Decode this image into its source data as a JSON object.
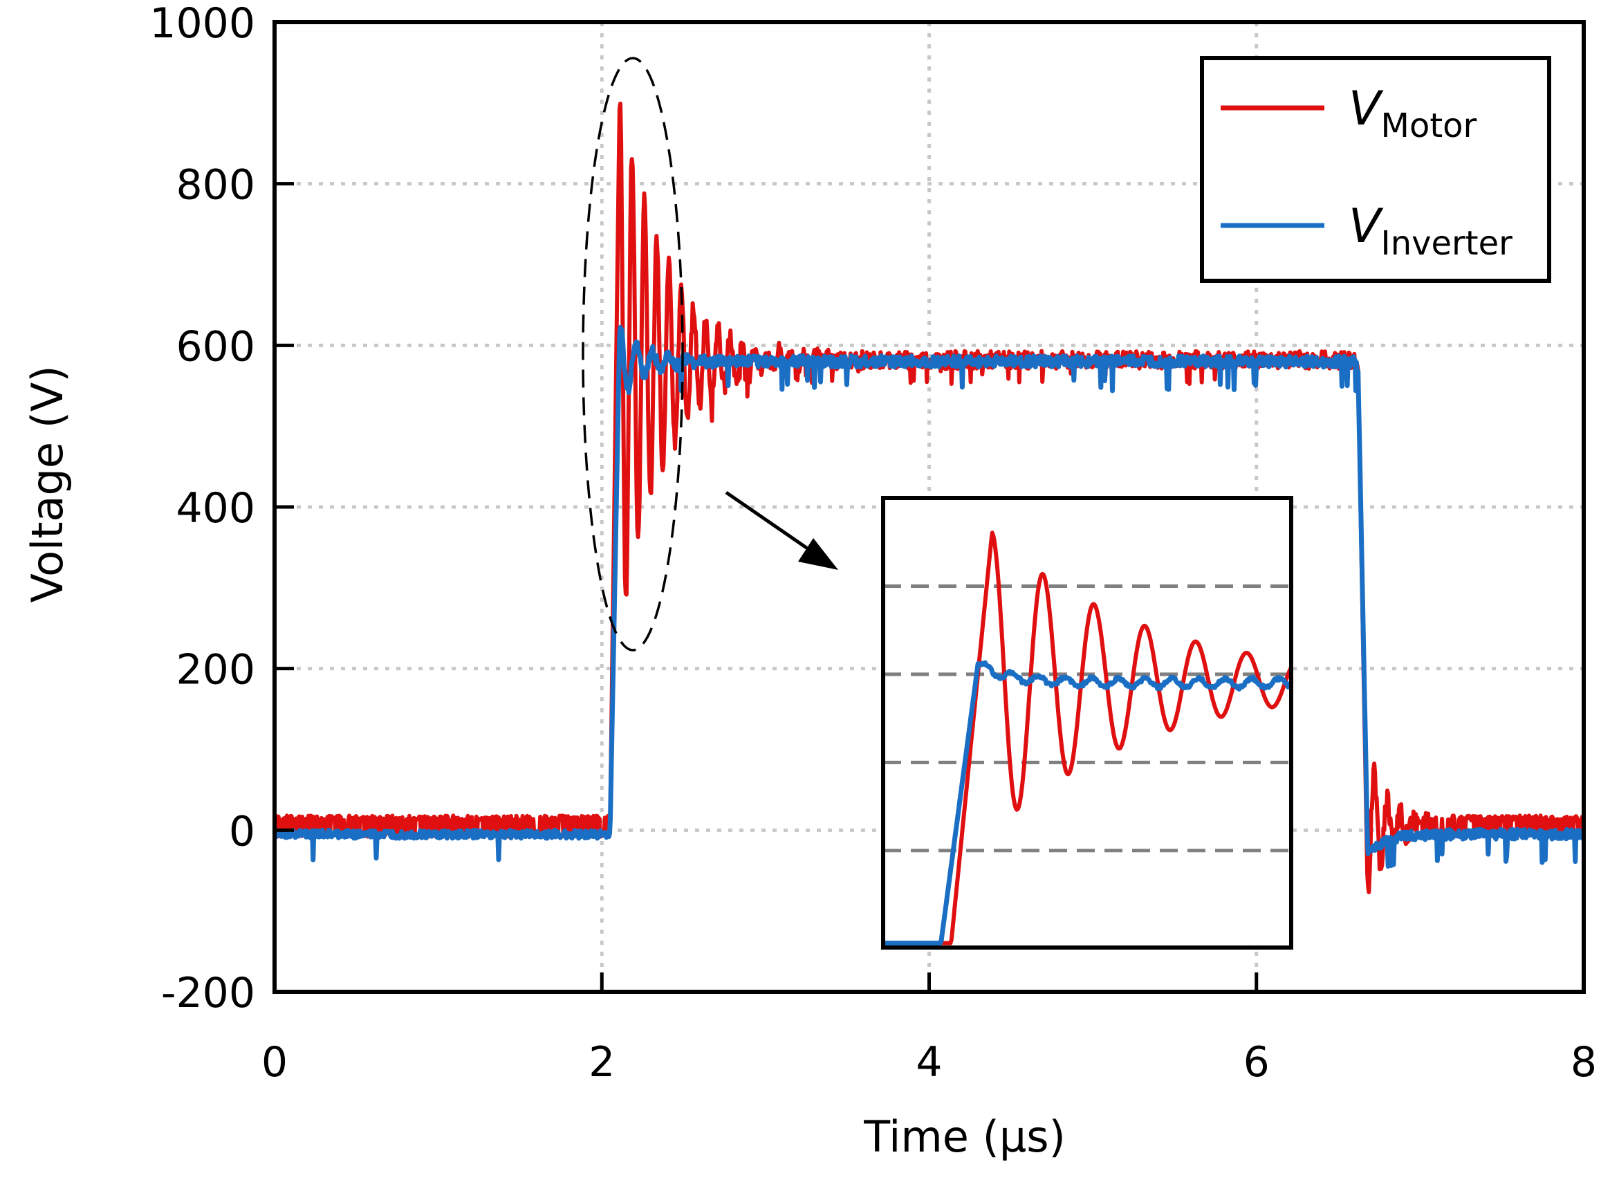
{
  "chart_data": {
    "type": "line",
    "title": "",
    "xlabel": "Time (µs)",
    "ylabel": "Voltage (V)",
    "xlim": [
      0,
      8
    ],
    "ylim": [
      -200,
      1000
    ],
    "x_ticks": [
      0,
      2,
      4,
      6,
      8
    ],
    "x_tick_labels": [
      "0",
      "2",
      "4",
      "6",
      "8"
    ],
    "y_ticks": [
      -200,
      0,
      200,
      400,
      600,
      800,
      1000
    ],
    "y_tick_labels": [
      "-200",
      "0",
      "200",
      "400",
      "600",
      "800",
      "1000"
    ],
    "grid": true,
    "legend": {
      "position": "top-right",
      "entries": [
        {
          "main": "V",
          "sub": "Motor"
        },
        {
          "main": "V",
          "sub": "Inverter"
        }
      ]
    },
    "colors": {
      "motor": "#e01010",
      "inverter": "#1a6fc4"
    },
    "series": [
      {
        "name": "V_Motor",
        "description": "Motor-terminal voltage: ~0 V baseline (±15 V noise), rises at ~2.05 µs, overshoots to ~920 V then damped ringing around ~580 V, falls at ~6.62 µs with undershoot to ~-100 V",
        "rise_time_us": 2.05,
        "fall_time_us": 6.62,
        "peak_V": 920,
        "steady_V": 582,
        "undershoot_V": -100
      },
      {
        "name": "V_Inverter",
        "description": "Inverter-output voltage: ~-5 V baseline, rises at ~2.05 µs to ~630 V peak, settles ~580 V, falls at ~6.62 µs",
        "rise_time_us": 2.05,
        "fall_time_us": 6.62,
        "peak_V": 630,
        "steady_V": 580
      }
    ],
    "annotations": [
      {
        "type": "ellipse",
        "label": "oscillation region around turn-on edge",
        "center_us": 2.15,
        "center_V": 600
      },
      {
        "type": "arrow",
        "label": "points to zoomed inset"
      },
      {
        "type": "inset",
        "label": "zoom of turn-on transient"
      }
    ]
  }
}
